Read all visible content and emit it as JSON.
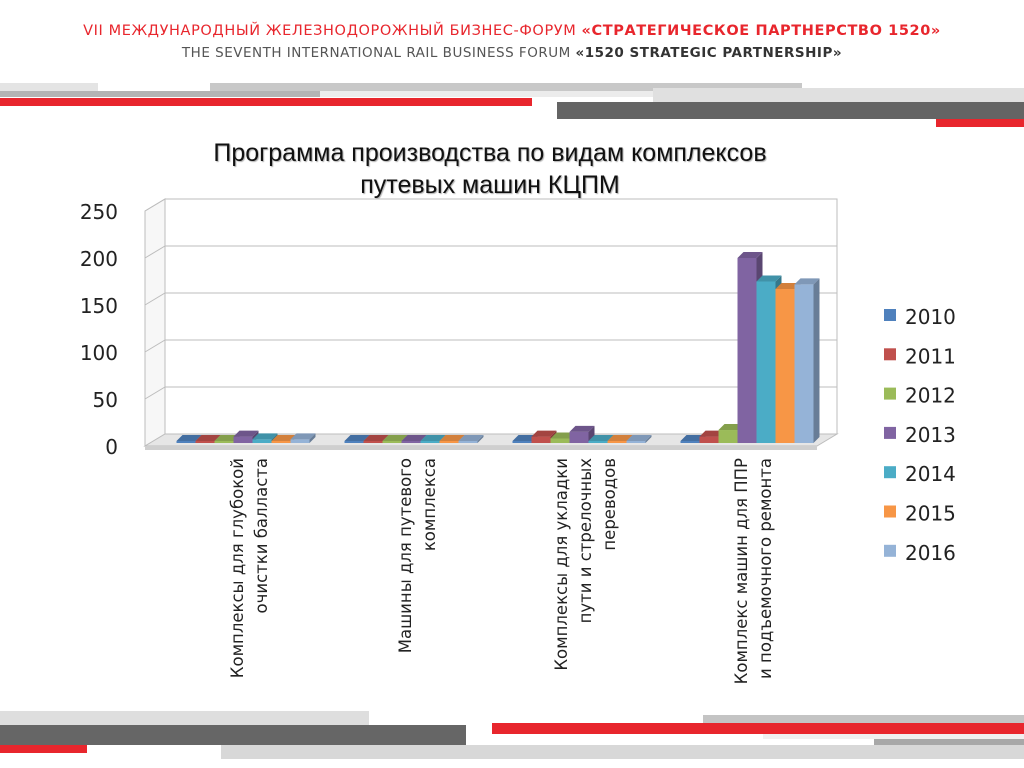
{
  "header": {
    "ru_prefix": "VII МЕЖДУНАРОДНЫЙ ЖЕЛЕЗНОДОРОЖНЫЙ БИЗНЕС-ФОРУМ ",
    "ru_strong": "«СТРАТЕГИЧЕСКОЕ ПАРТНЕРСТВО 1520»",
    "en_prefix": "THE SEVENTH INTERNATIONAL RAIL BUSINESS FORUM ",
    "en_strong": "«1520 STRATEGIC PARTNERSHIP»"
  },
  "colors": {
    "accent_red": "#e8262d",
    "dark_gray": "#646464",
    "mid_gray": "#a9a9a9",
    "light_gray": "#d6d6d6"
  },
  "chart_data": {
    "type": "bar",
    "title_line1": "Программа производства по видам комплексов",
    "title_line2": "путевых машин КЦПМ",
    "categories": [
      [
        "Комплексы для глубокой",
        "очистки балласта"
      ],
      [
        "Машины для путевого",
        "комплекса"
      ],
      [
        "Комплексы для укладки",
        "пути и стрелочных",
        "переводов"
      ],
      [
        "Комплекс машин для ППР",
        "и подъемочного ремонта"
      ]
    ],
    "series": [
      {
        "name": "2010",
        "color": "#4f81bd",
        "values": [
          1,
          2,
          3,
          2
        ]
      },
      {
        "name": "2011",
        "color": "#c0504d",
        "values": [
          2,
          5,
          10,
          10
        ]
      },
      {
        "name": "2012",
        "color": "#9bbb59",
        "values": [
          5,
          3,
          8,
          17
        ]
      },
      {
        "name": "2013",
        "color": "#8064a2",
        "values": [
          10,
          2,
          15,
          200
        ]
      },
      {
        "name": "2014",
        "color": "#4bacc6",
        "values": [
          7,
          1,
          5,
          175
        ]
      },
      {
        "name": "2015",
        "color": "#f79646",
        "values": [
          5,
          1,
          3,
          167
        ]
      },
      {
        "name": "2016",
        "color": "#95b3d7",
        "values": [
          7,
          0,
          0,
          172
        ]
      }
    ],
    "yticks": [
      "0",
      "50",
      "100",
      "150",
      "200",
      "250"
    ],
    "ylim": [
      0,
      250
    ],
    "grid": true,
    "legend_position": "right"
  }
}
